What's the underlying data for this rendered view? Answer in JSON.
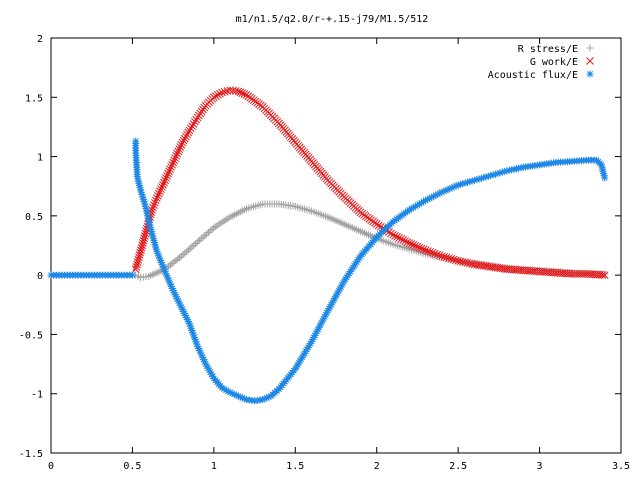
{
  "chart_data": {
    "type": "scatter",
    "title": "m1/n1.5/q2.0/r-+.15-j79/M1.5/512",
    "xlabel": "",
    "ylabel": "",
    "xlim": [
      0,
      3.5
    ],
    "ylim": [
      -1.5,
      2
    ],
    "x_ticks": [
      "0",
      "0.5",
      "1",
      "1.5",
      "2",
      "2.5",
      "3",
      "3.5"
    ],
    "y_ticks": [
      "2",
      "1.5",
      "1",
      "0.5",
      "0",
      "-0.5",
      "-1",
      "-1.5"
    ],
    "grid": false,
    "legend_position": "top-right",
    "series": [
      {
        "name": "R stress/E",
        "marker": "+",
        "color": "#a0a0a0",
        "points": [
          [
            0.52,
            0.0
          ],
          [
            0.55,
            -0.02
          ],
          [
            0.6,
            -0.01
          ],
          [
            0.7,
            0.05
          ],
          [
            0.8,
            0.16
          ],
          [
            0.9,
            0.28
          ],
          [
            1.0,
            0.4
          ],
          [
            1.1,
            0.49
          ],
          [
            1.2,
            0.56
          ],
          [
            1.3,
            0.6
          ],
          [
            1.4,
            0.6
          ],
          [
            1.5,
            0.58
          ],
          [
            1.6,
            0.54
          ],
          [
            1.7,
            0.49
          ],
          [
            1.8,
            0.43
          ],
          [
            1.9,
            0.37
          ],
          [
            2.0,
            0.31
          ],
          [
            2.1,
            0.26
          ],
          [
            2.2,
            0.22
          ],
          [
            2.3,
            0.18
          ],
          [
            2.4,
            0.15
          ],
          [
            2.5,
            0.12
          ],
          [
            2.6,
            0.1
          ],
          [
            2.7,
            0.08
          ],
          [
            2.8,
            0.06
          ],
          [
            2.9,
            0.05
          ],
          [
            3.0,
            0.04
          ],
          [
            3.1,
            0.03
          ],
          [
            3.2,
            0.02
          ],
          [
            3.3,
            0.01
          ],
          [
            3.4,
            0.01
          ]
        ]
      },
      {
        "name": "G work/E",
        "marker": "x",
        "color": "#e41a1c",
        "points": [
          [
            0.52,
            0.05
          ],
          [
            0.54,
            0.15
          ],
          [
            0.56,
            0.25
          ],
          [
            0.58,
            0.35
          ],
          [
            0.6,
            0.45
          ],
          [
            0.62,
            0.55
          ],
          [
            0.65,
            0.65
          ],
          [
            0.7,
            0.8
          ],
          [
            0.75,
            0.95
          ],
          [
            0.8,
            1.1
          ],
          [
            0.85,
            1.22
          ],
          [
            0.9,
            1.33
          ],
          [
            0.95,
            1.43
          ],
          [
            1.0,
            1.5
          ],
          [
            1.05,
            1.54
          ],
          [
            1.1,
            1.56
          ],
          [
            1.15,
            1.55
          ],
          [
            1.2,
            1.52
          ],
          [
            1.3,
            1.42
          ],
          [
            1.4,
            1.28
          ],
          [
            1.5,
            1.12
          ],
          [
            1.6,
            0.96
          ],
          [
            1.7,
            0.8
          ],
          [
            1.8,
            0.66
          ],
          [
            1.9,
            0.53
          ],
          [
            2.0,
            0.43
          ],
          [
            2.1,
            0.34
          ],
          [
            2.2,
            0.27
          ],
          [
            2.3,
            0.21
          ],
          [
            2.4,
            0.16
          ],
          [
            2.5,
            0.12
          ],
          [
            2.6,
            0.09
          ],
          [
            2.7,
            0.07
          ],
          [
            2.8,
            0.05
          ],
          [
            2.9,
            0.04
          ],
          [
            3.0,
            0.03
          ],
          [
            3.1,
            0.02
          ],
          [
            3.2,
            0.01
          ],
          [
            3.3,
            0.01
          ],
          [
            3.4,
            0.0
          ]
        ]
      },
      {
        "name": "Acoustic flux/E",
        "marker": "*",
        "color": "#1e88e5",
        "points": [
          [
            0.52,
            1.13
          ],
          [
            0.52,
            1.05
          ],
          [
            0.53,
            0.83
          ],
          [
            0.55,
            0.72
          ],
          [
            0.58,
            0.58
          ],
          [
            0.6,
            0.46
          ],
          [
            0.62,
            0.35
          ],
          [
            0.65,
            0.2
          ],
          [
            0.7,
            0.03
          ],
          [
            0.75,
            -0.13
          ],
          [
            0.8,
            -0.27
          ],
          [
            0.85,
            -0.41
          ],
          [
            0.9,
            -0.6
          ],
          [
            0.95,
            -0.75
          ],
          [
            1.0,
            -0.87
          ],
          [
            1.05,
            -0.95
          ],
          [
            1.1,
            -0.99
          ],
          [
            1.15,
            -1.02
          ],
          [
            1.2,
            -1.05
          ],
          [
            1.25,
            -1.06
          ],
          [
            1.3,
            -1.05
          ],
          [
            1.35,
            -1.02
          ],
          [
            1.4,
            -0.96
          ],
          [
            1.5,
            -0.79
          ],
          [
            1.6,
            -0.56
          ],
          [
            1.7,
            -0.3
          ],
          [
            1.8,
            -0.05
          ],
          [
            1.9,
            0.16
          ],
          [
            2.0,
            0.32
          ],
          [
            2.1,
            0.45
          ],
          [
            2.2,
            0.55
          ],
          [
            2.3,
            0.63
          ],
          [
            2.4,
            0.7
          ],
          [
            2.5,
            0.76
          ],
          [
            2.6,
            0.8
          ],
          [
            2.7,
            0.84
          ],
          [
            2.8,
            0.88
          ],
          [
            2.9,
            0.91
          ],
          [
            3.0,
            0.93
          ],
          [
            3.1,
            0.95
          ],
          [
            3.2,
            0.96
          ],
          [
            3.3,
            0.97
          ],
          [
            3.35,
            0.97
          ],
          [
            3.38,
            0.93
          ],
          [
            3.4,
            0.82
          ]
        ]
      },
      {
        "name": "",
        "marker": "*",
        "color": "#1e88e5",
        "points": [
          [
            0.0,
            0.0
          ],
          [
            0.05,
            0.0
          ],
          [
            0.1,
            0.0
          ],
          [
            0.15,
            0.0
          ],
          [
            0.2,
            0.0
          ],
          [
            0.25,
            0.0
          ],
          [
            0.3,
            0.0
          ],
          [
            0.35,
            0.0
          ],
          [
            0.4,
            0.0
          ],
          [
            0.45,
            0.0
          ],
          [
            0.5,
            0.0
          ]
        ]
      }
    ]
  }
}
